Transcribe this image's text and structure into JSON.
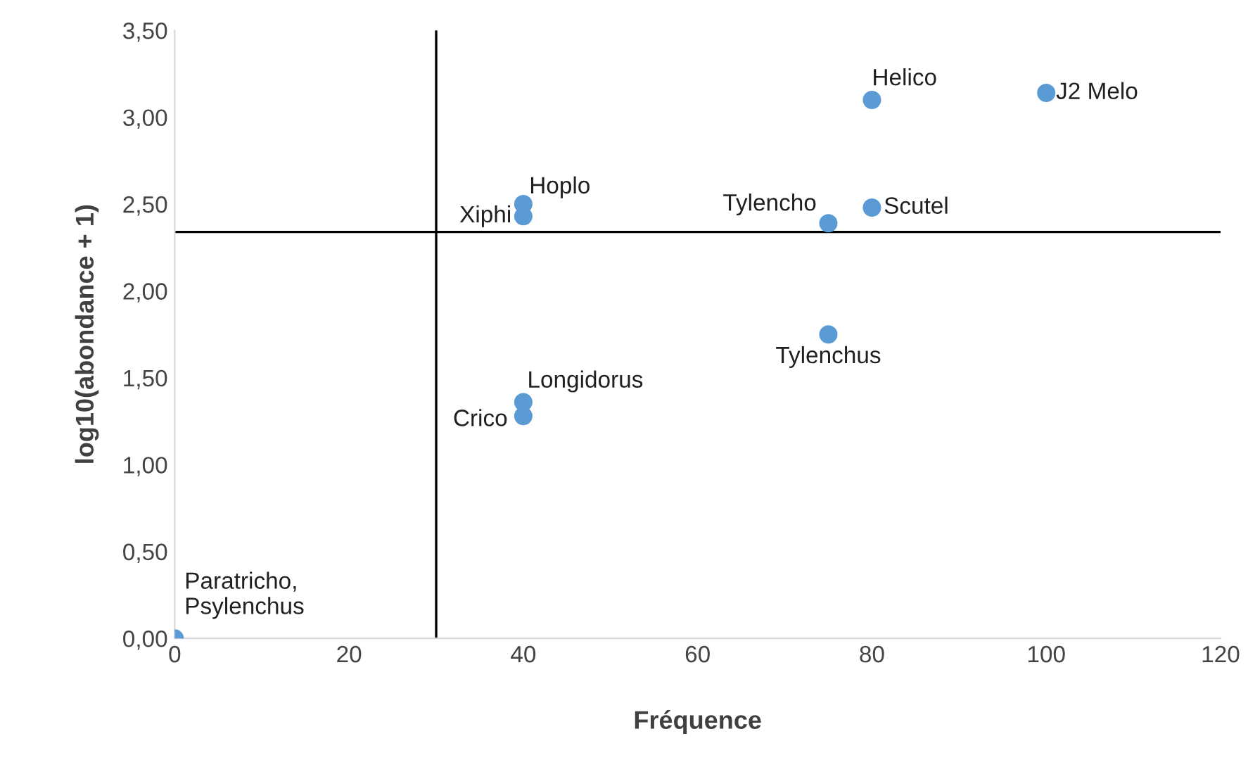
{
  "chart_data": {
    "type": "scatter",
    "xlabel": "Fréquence",
    "ylabel": "log10(abondance + 1)",
    "x": [
      0,
      40,
      40,
      40,
      40,
      75,
      80,
      75,
      80,
      100
    ],
    "series": [
      {
        "color": "#5b9bd5",
        "values": [
          0,
          1.28,
          1.36,
          2.43,
          2.5,
          2.39,
          2.48,
          1.75,
          3.1,
          3.14
        ]
      }
    ],
    "marker": "circle",
    "grid": false,
    "legend": false,
    "xlim": [
      0,
      120
    ],
    "xticks": [
      0,
      20,
      40,
      60,
      80,
      100,
      120
    ],
    "ylim": [
      0,
      3.5
    ],
    "yticks": [
      {
        "value": 0,
        "label": "0,00"
      },
      {
        "value": 0.5,
        "label": "0,50"
      },
      {
        "value": 1,
        "label": "1,00"
      },
      {
        "value": 1.5,
        "label": "1,50"
      },
      {
        "value": 2,
        "label": "2,00"
      },
      {
        "value": 2.5,
        "label": "2,50"
      },
      {
        "value": 3,
        "label": "3,00"
      },
      {
        "value": 3.5,
        "label": "3,50"
      }
    ],
    "ref_lines": [
      {
        "axis": "x",
        "value": 30,
        "color": "#000000"
      },
      {
        "axis": "y",
        "value": 2.34,
        "color": "#000000"
      }
    ],
    "annotations": [
      {
        "text": "Paratricho,\nPsylenchus",
        "x": 0,
        "y": 0
      },
      {
        "text": "Crico",
        "x": 40,
        "y": 1.28
      },
      {
        "text": "Longidorus",
        "x": 40,
        "y": 1.36
      },
      {
        "text": "Xiphi",
        "x": 40,
        "y": 2.43
      },
      {
        "text": "Hoplo",
        "x": 40,
        "y": 2.5
      },
      {
        "text": "Tylencho",
        "x": 75,
        "y": 2.39
      },
      {
        "text": "Scutel",
        "x": 80,
        "y": 2.48
      },
      {
        "text": "Tylenchus",
        "x": 75,
        "y": 1.75
      },
      {
        "text": "Helico",
        "x": 80,
        "y": 3.1
      },
      {
        "text": "J2 Melo",
        "x": 100,
        "y": 3.14
      }
    ]
  }
}
